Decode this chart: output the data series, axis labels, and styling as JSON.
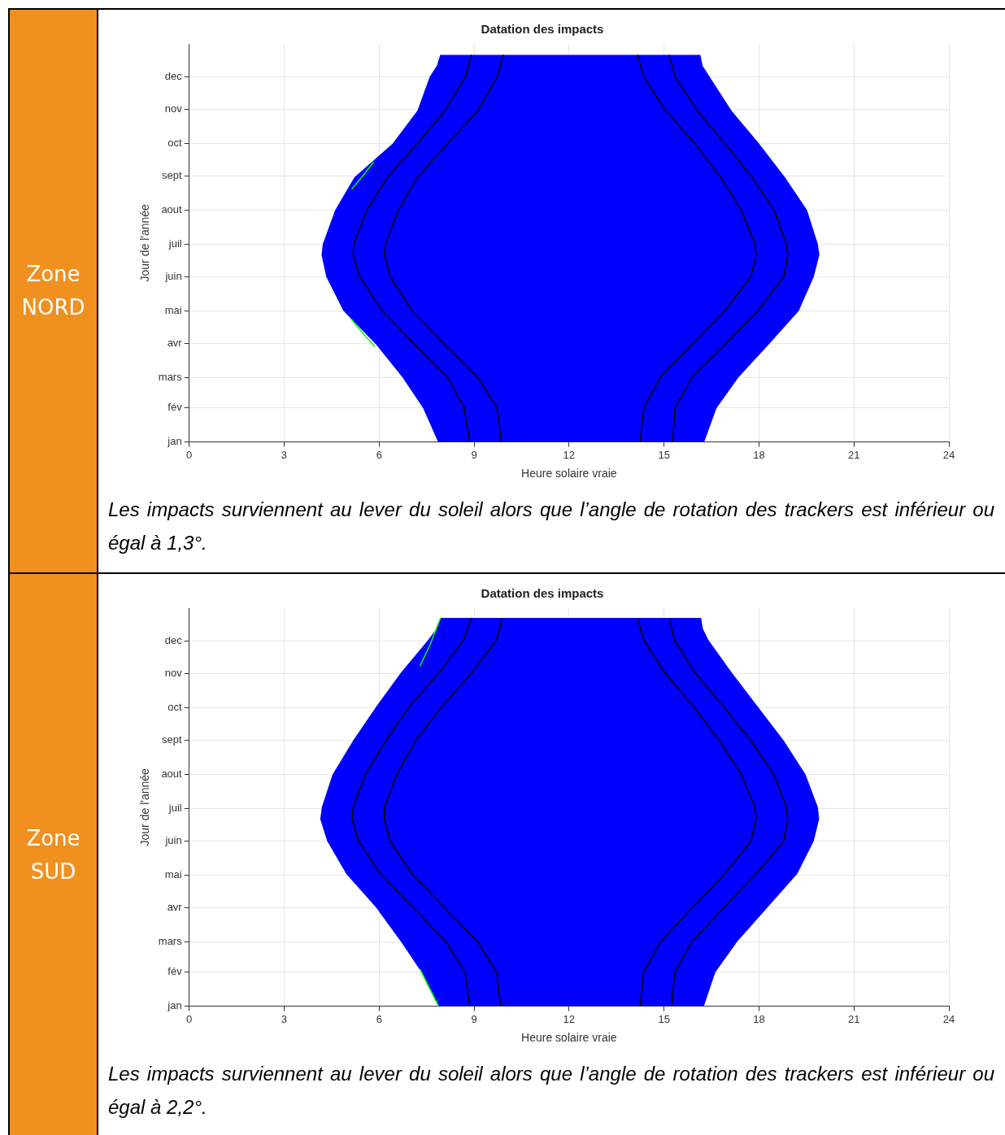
{
  "chart_data": [
    {
      "type": "area",
      "orientation": "horizontal",
      "title": "Datation des impacts",
      "xlabel": "Heure solaire vraie",
      "ylabel": "Jour de l'année",
      "annotations": [
        "Zone NORD",
        "Les impacts surviennent au lever du soleil alors que l’angle de rotation des trackers est inférieur ou égal à 1,3°."
      ],
      "xlim": [
        0,
        24
      ],
      "xticks": [
        0,
        3,
        6,
        9,
        12,
        15,
        18,
        21,
        24
      ],
      "ylim": [
        "--01-01",
        "--12-31"
      ],
      "yticks": [
        {
          "value": "--01-01",
          "label": "jan"
        },
        {
          "value": "--02-01",
          "label": "fév"
        },
        {
          "value": "--03-01",
          "label": "mars"
        },
        {
          "value": "--04-01",
          "label": "avr"
        },
        {
          "value": "--05-01",
          "label": "mai"
        },
        {
          "value": "--06-01",
          "label": "juin"
        },
        {
          "value": "--07-01",
          "label": "juil"
        },
        {
          "value": "--08-01",
          "label": "aout"
        },
        {
          "value": "--09-01",
          "label": "sept"
        },
        {
          "value": "--10-01",
          "label": "oct"
        },
        {
          "value": "--11-01",
          "label": "nov"
        },
        {
          "value": "--12-01",
          "label": "dec"
        }
      ],
      "grid": true,
      "marker": "none",
      "line_style": "solid",
      "series": [
        {
          "type": "area",
          "color": "#0000ff",
          "values": [
            7.86,
            7.39,
            6.74,
            5.91,
            4.87,
            4.33,
            4.18,
            4.22,
            4.61,
            5.22,
            6.43,
            7.21,
            7.6,
            7.82,
            7.93,
            16.15,
            16.22,
            16.44,
            17.13,
            18.0,
            18.82,
            19.52,
            19.86,
            19.91,
            19.73,
            19.26,
            18.3,
            17.35,
            16.66,
            16.27
          ],
          "x": [
            "--01-01",
            "--02-01",
            "--03-01",
            "--03-31",
            "--05-01",
            "--06-01",
            "--06-21",
            "--07-01",
            "--08-01",
            "--08-31",
            "--10-01",
            "--10-31",
            "--12-01",
            "--12-11",
            "--12-21",
            "--12-21",
            "--12-11",
            "--12-01",
            "--10-31",
            "--10-01",
            "--08-31",
            "--08-01",
            "--07-01",
            "--06-21",
            "--06-01",
            "--05-01",
            "--03-31",
            "--03-01",
            "--02-01",
            "--01-01"
          ]
        },
        {
          "type": "line",
          "color": "#000000",
          "values": [
            8.86,
            8.69,
            8.17,
            7.13,
            6.09,
            5.39,
            5.18,
            5.2,
            5.61,
            6.26,
            7.21,
            8.08,
            8.73,
            8.92
          ],
          "x": [
            "--01-01",
            "--02-01",
            "--03-01",
            "--03-31",
            "--05-01",
            "--06-01",
            "--06-21",
            "--07-01",
            "--08-01",
            "--08-31",
            "--10-01",
            "--10-31",
            "--12-01",
            "--12-21"
          ]
        },
        {
          "type": "line",
          "color": "#000000",
          "values": [
            9.86,
            9.73,
            9.12,
            8.08,
            7.04,
            6.35,
            6.17,
            6.2,
            6.61,
            7.21,
            8.17,
            9.12,
            9.73,
            9.92
          ],
          "x": [
            "--01-01",
            "--02-01",
            "--03-01",
            "--03-31",
            "--05-01",
            "--06-01",
            "--06-21",
            "--07-01",
            "--08-01",
            "--08-31",
            "--10-01",
            "--10-31",
            "--12-01",
            "--12-21"
          ]
        },
        {
          "type": "line",
          "color": "#000000",
          "values": [
            15.27,
            15.35,
            15.88,
            16.92,
            17.96,
            18.78,
            18.91,
            18.87,
            18.48,
            17.78,
            16.92,
            16.05,
            15.35,
            15.16
          ],
          "x": [
            "--01-01",
            "--02-01",
            "--03-01",
            "--03-31",
            "--05-01",
            "--06-01",
            "--06-21",
            "--07-01",
            "--08-01",
            "--08-31",
            "--10-01",
            "--10-31",
            "--12-01",
            "--12-21"
          ]
        },
        {
          "type": "line",
          "color": "#000000",
          "values": [
            14.25,
            14.36,
            14.88,
            15.88,
            16.92,
            17.74,
            17.91,
            17.87,
            17.44,
            16.79,
            15.97,
            15.05,
            14.36,
            14.17
          ],
          "x": [
            "--01-01",
            "--02-01",
            "--03-01",
            "--03-31",
            "--05-01",
            "--06-01",
            "--06-21",
            "--07-01",
            "--08-01",
            "--08-31",
            "--10-01",
            "--10-31",
            "--12-01",
            "--12-21"
          ]
        },
        {
          "type": "line",
          "color": "#00ff00",
          "values": [
            5.87,
            5.5,
            5.13
          ],
          "x": [
            "--03-29",
            "--04-10",
            "--04-23"
          ]
        },
        {
          "type": "line",
          "color": "#00ff00",
          "values": [
            5.13,
            5.5,
            5.83
          ],
          "x": [
            "--08-20",
            "--09-02",
            "--09-14"
          ]
        }
      ]
    },
    {
      "type": "area",
      "orientation": "horizontal",
      "title": "Datation des impacts",
      "xlabel": "Heure solaire vraie",
      "ylabel": "Jour de l'année",
      "annotations": [
        "Zone SUD",
        "Les impacts surviennent au lever du soleil alors que l’angle de rotation des trackers est inférieur ou égal à 2,2°."
      ],
      "xlim": [
        0,
        24
      ],
      "xticks": [
        0,
        3,
        6,
        9,
        12,
        15,
        18,
        21,
        24
      ],
      "ylim": [
        "--01-01",
        "--12-31"
      ],
      "yticks": [
        {
          "value": "--01-01",
          "label": "jan"
        },
        {
          "value": "--02-01",
          "label": "fév"
        },
        {
          "value": "--03-01",
          "label": "mars"
        },
        {
          "value": "--04-01",
          "label": "avr"
        },
        {
          "value": "--05-01",
          "label": "mai"
        },
        {
          "value": "--06-01",
          "label": "juin"
        },
        {
          "value": "--07-01",
          "label": "juil"
        },
        {
          "value": "--08-01",
          "label": "aout"
        },
        {
          "value": "--09-01",
          "label": "sept"
        },
        {
          "value": "--10-01",
          "label": "oct"
        },
        {
          "value": "--11-01",
          "label": "nov"
        },
        {
          "value": "--12-01",
          "label": "dec"
        }
      ],
      "grid": true,
      "marker": "none",
      "line_style": "solid",
      "series": [
        {
          "type": "area",
          "color": "#0000ff",
          "values": [
            7.88,
            7.34,
            6.69,
            5.91,
            4.96,
            4.36,
            4.14,
            4.19,
            4.53,
            5.18,
            5.91,
            6.69,
            7.55,
            7.81,
            7.94,
            16.17,
            16.23,
            16.4,
            17.14,
            17.96,
            18.78,
            19.47,
            19.86,
            19.9,
            19.73,
            19.21,
            18.26,
            17.31,
            16.62,
            16.26
          ],
          "x": [
            "--01-01",
            "--02-01",
            "--03-01",
            "--04-01",
            "--05-02",
            "--06-01",
            "--06-21",
            "--07-02",
            "--08-01",
            "--09-01",
            "--10-02",
            "--11-02",
            "--12-02",
            "--12-12",
            "--12-22",
            "--12-22",
            "--12-12",
            "--12-02",
            "--11-02",
            "--10-02",
            "--09-01",
            "--08-01",
            "--07-02",
            "--06-21",
            "--06-01",
            "--05-02",
            "--04-01",
            "--03-01",
            "--02-01",
            "--01-01"
          ]
        },
        {
          "type": "line",
          "color": "#000000",
          "values": [
            8.86,
            8.72,
            8.11,
            7.08,
            6.04,
            5.35,
            5.15,
            5.18,
            5.57,
            6.22,
            6.95,
            7.9,
            8.67,
            8.91
          ],
          "x": [
            "--01-01",
            "--02-01",
            "--03-01",
            "--04-01",
            "--05-02",
            "--06-01",
            "--06-21",
            "--07-02",
            "--08-01",
            "--09-01",
            "--10-02",
            "--11-02",
            "--12-02",
            "--12-22"
          ]
        },
        {
          "type": "line",
          "color": "#000000",
          "values": [
            9.84,
            9.71,
            9.11,
            8.07,
            7.04,
            6.35,
            6.16,
            6.17,
            6.56,
            7.16,
            7.98,
            8.93,
            9.71,
            9.9
          ],
          "x": [
            "--01-01",
            "--02-01",
            "--03-01",
            "--04-01",
            "--05-02",
            "--06-01",
            "--06-21",
            "--07-02",
            "--08-01",
            "--09-01",
            "--10-02",
            "--11-02",
            "--12-02",
            "--12-22"
          ]
        },
        {
          "type": "line",
          "color": "#000000",
          "values": [
            15.24,
            15.34,
            15.89,
            16.88,
            17.91,
            18.78,
            18.91,
            18.86,
            18.47,
            17.74,
            16.88,
            15.97,
            15.33,
            15.17
          ],
          "x": [
            "--01-01",
            "--02-01",
            "--03-01",
            "--04-01",
            "--05-02",
            "--06-01",
            "--06-21",
            "--07-02",
            "--08-01",
            "--09-01",
            "--10-02",
            "--11-02",
            "--12-02",
            "--12-22"
          ]
        },
        {
          "type": "line",
          "color": "#000000",
          "values": [
            14.25,
            14.36,
            14.89,
            15.89,
            16.92,
            17.74,
            17.91,
            17.87,
            17.44,
            16.75,
            15.93,
            15.02,
            14.36,
            14.16
          ],
          "x": [
            "--01-01",
            "--02-01",
            "--03-01",
            "--04-01",
            "--05-02",
            "--06-01",
            "--06-21",
            "--07-02",
            "--08-01",
            "--09-01",
            "--10-02",
            "--11-02",
            "--12-02",
            "--12-22"
          ]
        },
        {
          "type": "line",
          "color": "#00ff00",
          "values": [
            7.88,
            7.6,
            7.29
          ],
          "x": [
            "--01-01",
            "--01-17",
            "--02-04"
          ]
        },
        {
          "type": "line",
          "color": "#00ff00",
          "values": [
            7.29,
            7.6,
            7.94
          ],
          "x": [
            "--11-08",
            "--11-27",
            "--12-22"
          ]
        }
      ]
    }
  ]
}
